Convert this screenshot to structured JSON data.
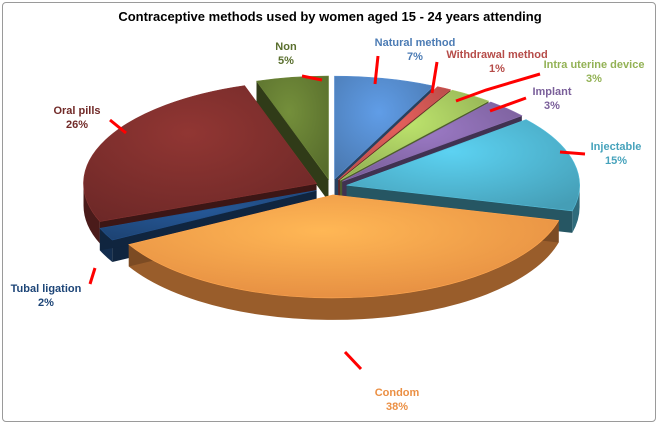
{
  "chart_data": {
    "type": "pie",
    "title": "Contraceptive methods used by women aged 15 - 24 years attending",
    "labels": [
      "Natural method",
      "Withdrawal method",
      "Intra uterine device",
      "Implant",
      "Injectable",
      "Condom",
      "Tubal ligation",
      "Oral pills",
      "Non"
    ],
    "values": [
      7,
      1,
      3,
      3,
      15,
      38,
      2,
      26,
      5
    ],
    "value_labels": [
      "7%",
      "1%",
      "3%",
      "3%",
      "15%",
      "38%",
      "2%",
      "26%",
      "5%"
    ],
    "colors": [
      "#4F81BD",
      "#C0504D",
      "#9BBB59",
      "#8064A2",
      "#4BACC6",
      "#F79646",
      "#1F497D",
      "#772C2A",
      "#5F7530"
    ],
    "exploded": true,
    "style": "3d",
    "leader_line_color": "#FF0000"
  }
}
